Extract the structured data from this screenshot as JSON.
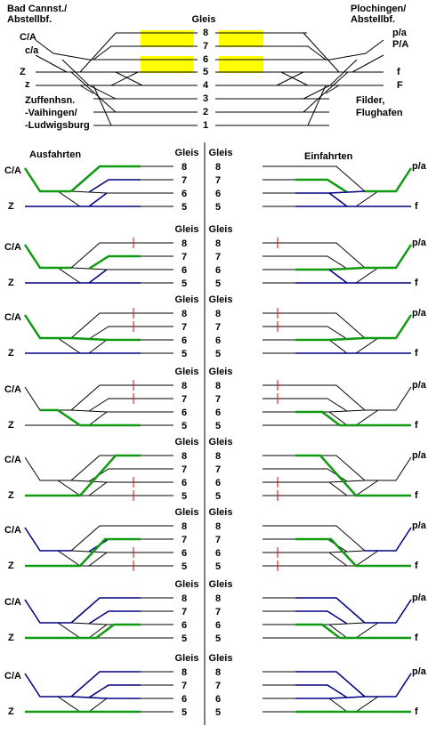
{
  "header": {
    "left_top": [
      "Bad Cannst./",
      "Abstellbf."
    ],
    "right_top": [
      "Plochingen/",
      "Abstellbf."
    ],
    "gleis": "Gleis",
    "tracks": [
      "8",
      "7",
      "6",
      "5",
      "4",
      "3",
      "2",
      "1"
    ],
    "left_lines": [
      "C/A",
      "c/a",
      "Z",
      "z"
    ],
    "right_lines": [
      "p/a",
      "P/A",
      "f",
      "F"
    ],
    "left_bottom": [
      "Zuffenhsn.",
      "-Vaihingen/",
      "-Ludwigsburg"
    ],
    "right_bottom": [
      "Filder,",
      "Flughafen"
    ]
  },
  "sections": {
    "left": "Ausfahrten",
    "right": "Einfahrten"
  },
  "panels": {
    "gleis": "Gleis",
    "tracks": [
      "8",
      "7",
      "6",
      "5"
    ],
    "left_labels": [
      "C/A",
      "Z"
    ],
    "right_labels": [
      "p/a",
      "f"
    ]
  }
}
